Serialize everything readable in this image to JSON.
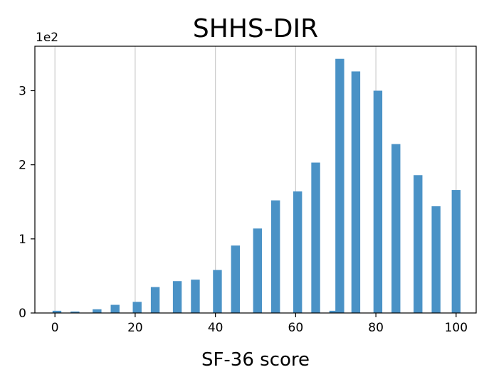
{
  "chart_data": {
    "type": "bar",
    "title": "SHHS-DIR",
    "xlabel": "SF-36 score",
    "ylabel": "",
    "y_multiplier_label": "1e2",
    "xlim": [
      -5,
      105
    ],
    "ylim": [
      0,
      3.6
    ],
    "x_ticks": [
      0,
      20,
      40,
      60,
      80,
      100
    ],
    "x_tick_labels": [
      "0",
      "20",
      "40",
      "60",
      "80",
      "100"
    ],
    "y_ticks": [
      0,
      1,
      2,
      3
    ],
    "y_tick_labels": [
      "0",
      "1",
      "2",
      "3"
    ],
    "grid": "vertical at x ticks",
    "bar_color": "#4a92c6",
    "bar_width": 2.2,
    "x": [
      0.5,
      5,
      10.5,
      15,
      20.5,
      25,
      30.5,
      35,
      40.5,
      45,
      50.5,
      55,
      60.5,
      65,
      69.5,
      71,
      75,
      80.5,
      85,
      90.5,
      95,
      100
    ],
    "values": [
      0.03,
      0.02,
      0.05,
      0.11,
      0.15,
      0.35,
      0.43,
      0.45,
      0.58,
      0.91,
      1.14,
      1.52,
      1.64,
      2.03,
      0.03,
      3.43,
      3.26,
      3.0,
      2.28,
      1.86,
      1.44,
      1.66
    ]
  }
}
